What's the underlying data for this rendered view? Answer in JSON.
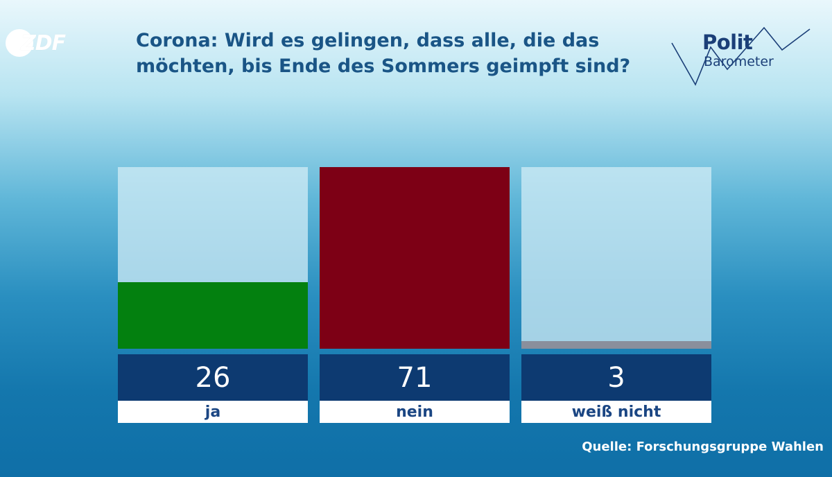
{
  "branding": {
    "zdf_logo": "ZDF",
    "politbarometer_line1": "Polit",
    "politbarometer_line2": "Barometer"
  },
  "source": "Quelle: Forschungsgruppe Wahlen",
  "colors": {
    "title": "#1a5586",
    "value_box": "#0d3a71",
    "label_text": "#1b4683"
  },
  "chart_data": {
    "type": "bar",
    "title": "Corona: Wird es gelingen, dass alle, die das möchten, bis Ende des Sommers geimpft sind?",
    "unit": "percent",
    "ylim": [
      0,
      71
    ],
    "categories": [
      "ja",
      "nein",
      "weiß nicht"
    ],
    "values": [
      26,
      71,
      3
    ],
    "value_labels": [
      "26",
      "71",
      "3"
    ],
    "colors": [
      "#03800f",
      "#7d0015",
      "#8a8f9c"
    ],
    "grid": false,
    "legend": "none"
  }
}
